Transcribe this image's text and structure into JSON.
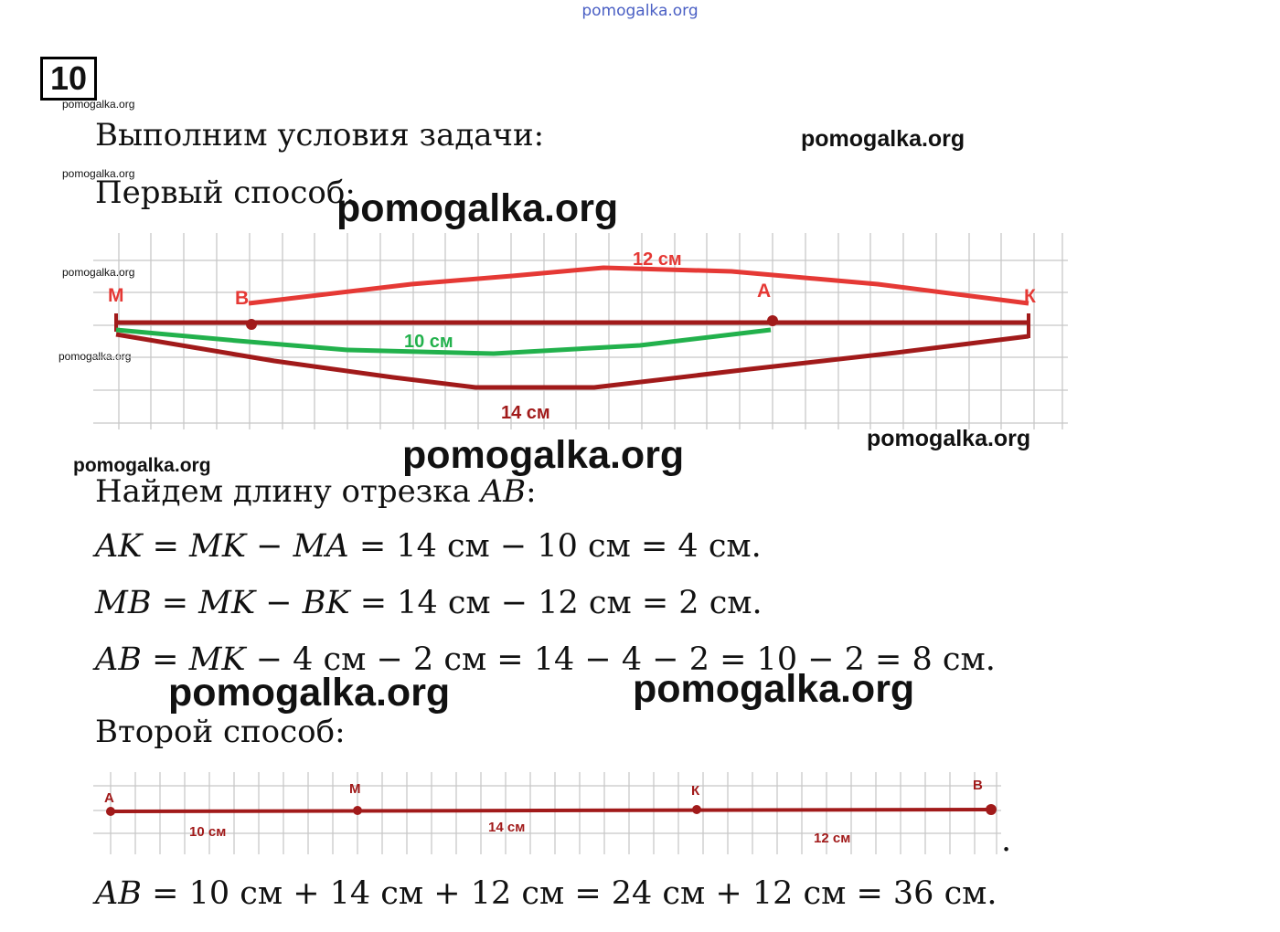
{
  "watermarks": {
    "top": "pomogalka.org",
    "small": "pomogalka.org",
    "medium": "pomogalka.org",
    "large": "pomogalka.org"
  },
  "task_number": "10",
  "intro": "Выполним условия задачи:",
  "method1": {
    "heading": "Первый способ:",
    "points": [
      "М",
      "В",
      "А",
      "К"
    ],
    "labels": {
      "red": "12 см",
      "green": "10 см",
      "dark": "14 см"
    }
  },
  "find": {
    "text": "Найдем длину отрезка ",
    "var": "AB",
    "colon": ":"
  },
  "equations": {
    "e1": {
      "lhs": "AK",
      "eq1": " = ",
      "a": "MK",
      "minus": " − ",
      "b": "MA",
      "rest": " = 14 см − 10 см = 4 см."
    },
    "e2": {
      "lhs": "MB",
      "eq1": " = ",
      "a": "MK",
      "minus": " − ",
      "b": "BK",
      "rest": " = 14 см − 12 см = 2 см."
    },
    "e3": {
      "lhs": "AB",
      "eq1": " = ",
      "a": "MK",
      "rest": " − 4 см − 2 см = 14 − 4 − 2 = 10 − 2 = 8 см."
    }
  },
  "method2": {
    "heading": "Второй способ:",
    "points": [
      "А",
      "М",
      "К",
      "В"
    ],
    "labels": [
      "10 см",
      "14 см",
      "12 см"
    ],
    "dot": "."
  },
  "final": {
    "lhs": "AB",
    "rest": " = 10 см + 14 см + 12 см = 24 см + 12 см = 36 см."
  },
  "colors": {
    "red": "#e53935",
    "green": "#22b14c",
    "darkred": "#a11a1a",
    "grid": "#c8c8c8",
    "watermark": "#4a5fc4"
  }
}
